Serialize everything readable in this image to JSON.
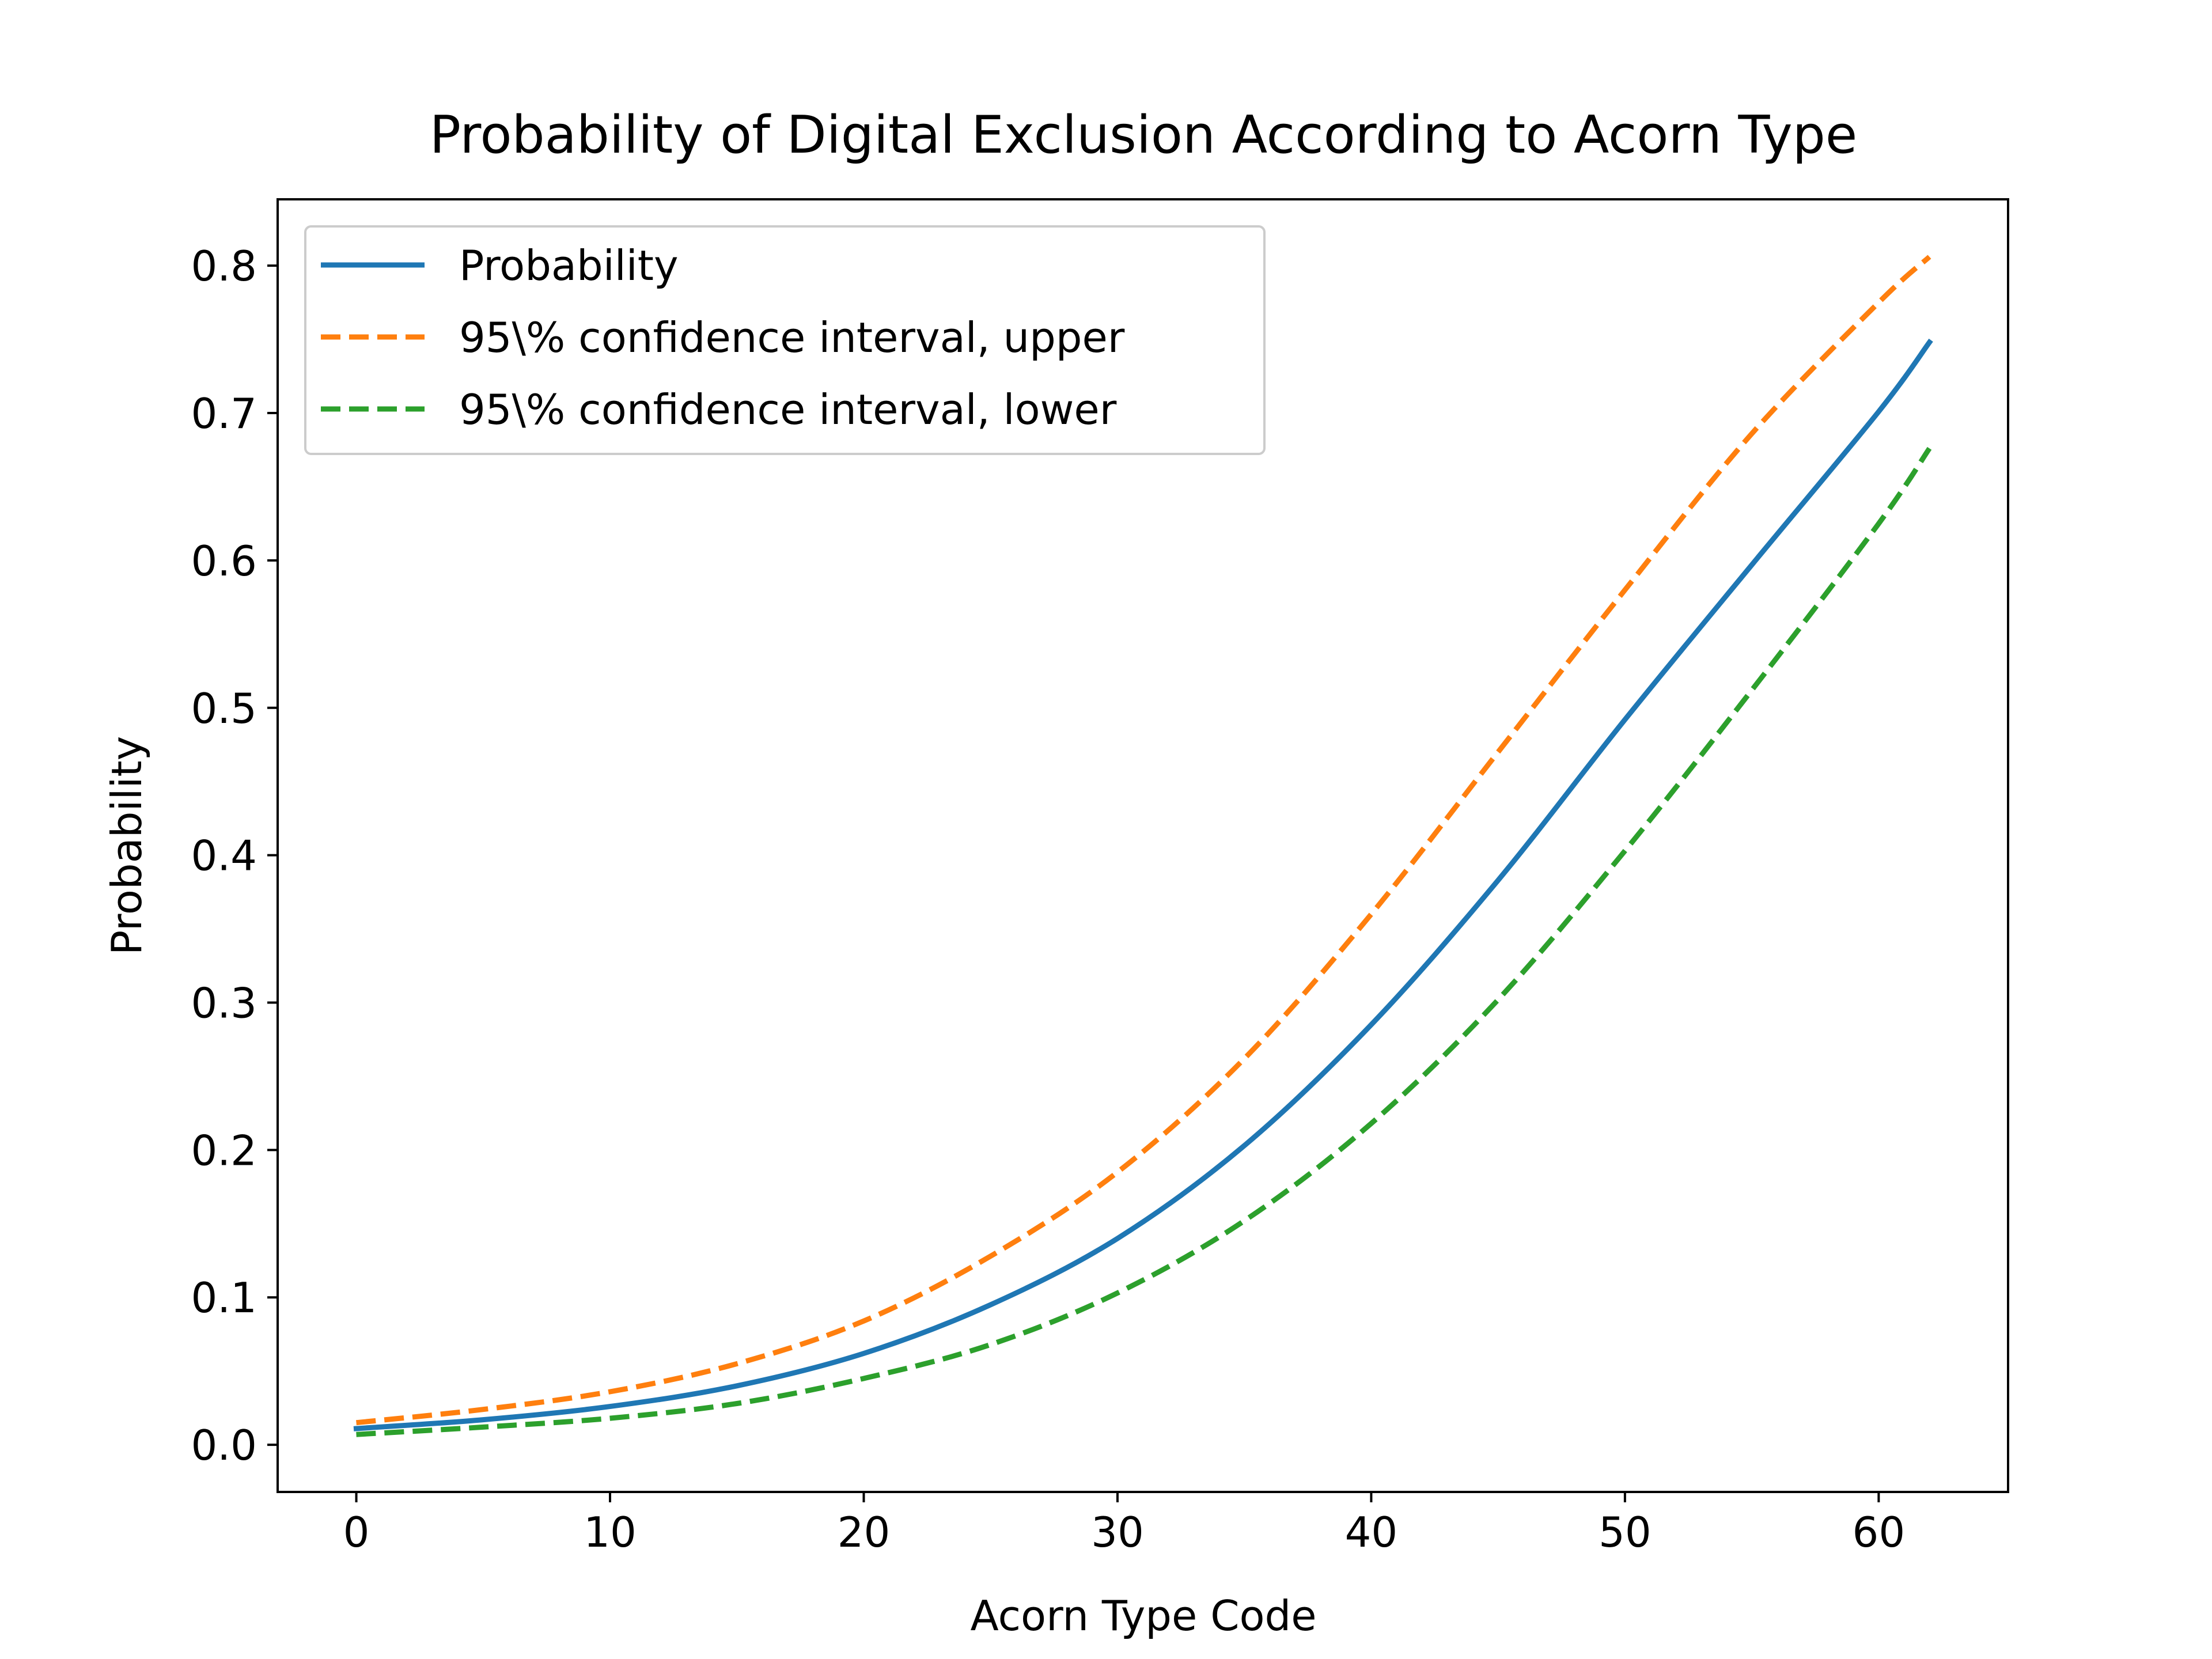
{
  "chart_data": {
    "type": "line",
    "title": "Probability of Digital Exclusion According to Acorn Type",
    "xlabel": "Acorn Type Code",
    "ylabel": "Probability",
    "xlim": [
      -3.1,
      65.1
    ],
    "ylim": [
      -0.032,
      0.845
    ],
    "xticks": [
      0,
      10,
      20,
      30,
      40,
      50,
      60
    ],
    "yticks": [
      0.0,
      0.1,
      0.2,
      0.3,
      0.4,
      0.5,
      0.6,
      0.7,
      0.8
    ],
    "xtick_labels": [
      "0",
      "10",
      "20",
      "30",
      "40",
      "50",
      "60"
    ],
    "ytick_labels": [
      "0.0",
      "0.1",
      "0.2",
      "0.3",
      "0.4",
      "0.5",
      "0.6",
      "0.7",
      "0.8"
    ],
    "grid": false,
    "legend": "upper-left",
    "x": [
      0,
      5,
      10,
      15,
      20,
      25,
      30,
      35,
      40,
      45,
      50,
      55,
      60,
      62
    ],
    "series": [
      {
        "name": "Probability",
        "color": "#1f77b4",
        "style": "solid",
        "values": [
          0.011,
          0.017,
          0.026,
          0.04,
          0.062,
          0.095,
          0.14,
          0.203,
          0.285,
          0.383,
          0.492,
          0.597,
          0.701,
          0.748
        ]
      },
      {
        "name": "95\\% confidence interval, upper",
        "color": "#ff7f0e",
        "style": "dashed",
        "values": [
          0.015,
          0.024,
          0.036,
          0.055,
          0.084,
          0.128,
          0.185,
          0.262,
          0.36,
          0.47,
          0.58,
          0.686,
          0.775,
          0.806
        ]
      },
      {
        "name": "95\\% confidence interval, lower",
        "color": "#2ca02c",
        "style": "dashed",
        "values": [
          0.007,
          0.012,
          0.018,
          0.028,
          0.045,
          0.068,
          0.103,
          0.152,
          0.218,
          0.302,
          0.403,
          0.512,
          0.625,
          0.676
        ]
      }
    ]
  }
}
